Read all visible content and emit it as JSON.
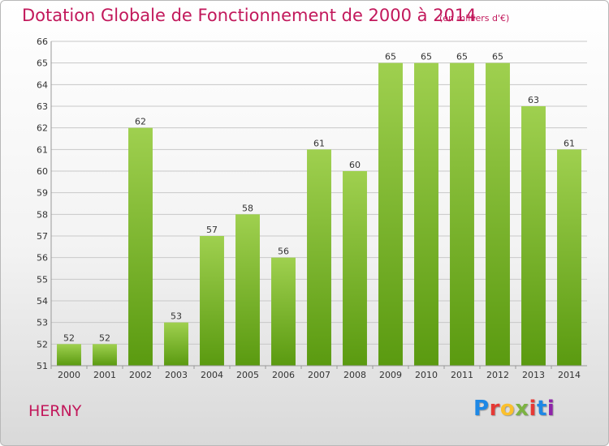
{
  "title": "Dotation Globale de Fonctionnement de 2000 à 2014",
  "subtitle": "(en milliers d'€)",
  "commune": "HERNY",
  "logo": {
    "letters": [
      "P",
      "r",
      "o",
      "x",
      "i",
      "t",
      "i"
    ],
    "colors": [
      "#1e88e5",
      "#e53935",
      "#fbc02d",
      "#7cb342",
      "#e53935",
      "#1e88e5",
      "#8e24aa"
    ]
  },
  "colors": {
    "title": "#c2185b",
    "bar_top": "#9fd04f",
    "bar_bottom": "#5a9a10",
    "grid": "#c8c8c8"
  },
  "chart_data": {
    "type": "bar",
    "title": "Dotation Globale de Fonctionnement de 2000 à 2014",
    "subtitle": "(en milliers d'€)",
    "categories": [
      "2000",
      "2001",
      "2002",
      "2003",
      "2004",
      "2005",
      "2006",
      "2007",
      "2008",
      "2009",
      "2010",
      "2011",
      "2012",
      "2013",
      "2014"
    ],
    "values": [
      52,
      52,
      62,
      53,
      57,
      58,
      56,
      61,
      60,
      65,
      65,
      65,
      65,
      63,
      61
    ],
    "ylim": [
      51,
      66
    ],
    "yticks": [
      51,
      52,
      53,
      54,
      55,
      56,
      57,
      58,
      59,
      60,
      61,
      62,
      63,
      64,
      65,
      66
    ],
    "grid": true,
    "legend": "none"
  }
}
